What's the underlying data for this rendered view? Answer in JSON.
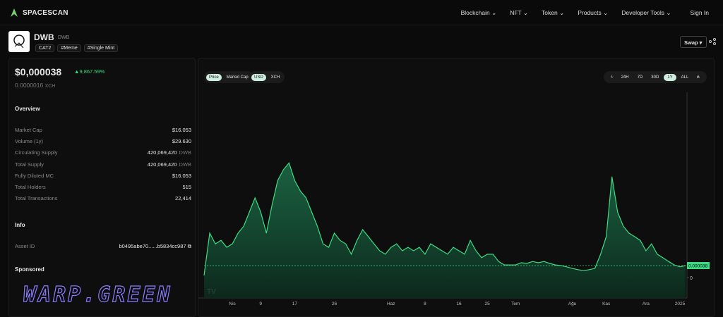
{
  "nav": {
    "brand": "SPACESCAN",
    "items": [
      "Blockchain",
      "NFT",
      "Token",
      "Products",
      "Developer Tools"
    ],
    "sign_in": "Sign In"
  },
  "token": {
    "name": "DWB",
    "symbol": "DWB",
    "tags": [
      "CAT2",
      "#Meme",
      "#Single Mint"
    ],
    "swap": "Swap"
  },
  "summary": {
    "price": "$0,000038",
    "change": "9,867.59%",
    "price_xch": "0.0000016",
    "xch_unit": "XCH"
  },
  "overview": {
    "title": "Overview",
    "rows": [
      {
        "label": "Market Cap",
        "value": "$16.053"
      },
      {
        "label": "Volume (1y)",
        "value": "$29.630"
      },
      {
        "label": "Circulating Supply",
        "value": "420,069,420",
        "unit": "DWB"
      },
      {
        "label": "Total Supply",
        "value": "420,069,420",
        "unit": "DWB"
      },
      {
        "label": "Fully Diluted MC",
        "value": "$16.053"
      },
      {
        "label": "Total Holders",
        "value": "515"
      },
      {
        "label": "Total Transactions",
        "value": "22,414"
      }
    ]
  },
  "info": {
    "title": "Info",
    "asset_id_label": "Asset ID",
    "asset_id": "b0495abe70......b5834cc987"
  },
  "sponsored": {
    "title": "Sponsored",
    "banner": "WARP.GREEN"
  },
  "chart_data": {
    "type": "area",
    "metric_toggle": [
      "Price",
      "Market Cap"
    ],
    "currency_toggle": [
      "USD",
      "XCH"
    ],
    "ranges": [
      "24H",
      "7D",
      "30D",
      "1Y",
      "ALL"
    ],
    "color": "#3ddc84",
    "categories": [
      null,
      null,
      null,
      null,
      null,
      "Nis",
      null,
      null,
      null,
      null,
      "9",
      null,
      null,
      null,
      null,
      null,
      "17",
      null,
      null,
      null,
      null,
      null,
      null,
      "26",
      null,
      null,
      null,
      null,
      null,
      null,
      null,
      null,
      null,
      "Haz",
      null,
      null,
      null,
      null,
      null,
      "8",
      null,
      null,
      null,
      null,
      null,
      "16",
      null,
      null,
      null,
      null,
      "25",
      null,
      null,
      null,
      null,
      "Tem",
      null,
      null,
      null,
      null,
      null,
      null,
      null,
      null,
      null,
      "Ağu",
      null,
      null,
      null,
      null,
      null,
      "Kas",
      null,
      null,
      null,
      null,
      null,
      null,
      "Ara",
      null,
      null,
      null,
      null,
      null,
      "2025",
      null
    ],
    "values": [
      6.7e-06,
      0.000141,
      0.000107,
      0.000118,
      9.6e-05,
      0.000107,
      0.000141,
      0.000163,
      0.000208,
      0.000253,
      0.000208,
      0.000141,
      0.00023,
      0.000308,
      0.000342,
      0.000364,
      0.000308,
      0.000275,
      0.000253,
      0.000208,
      0.000163,
      0.000107,
      9.6e-05,
      0.000141,
      0.000118,
      0.000107,
      7.4e-05,
      0.000118,
      0.000152,
      0.00013,
      0.000107,
      8.5e-05,
      7.4e-05,
      9.6e-05,
      0.000107,
      8.5e-05,
      9.6e-05,
      8.5e-05,
      9.6e-05,
      7.4e-05,
      0.000107,
      9.6e-05,
      8.5e-05,
      7.4e-05,
      9.6e-05,
      8.5e-05,
      7.4e-05,
      0.000118,
      8.5e-05,
      6.3e-05,
      7.4e-05,
      7.4e-05,
      5.1e-05,
      4e-05,
      4e-05,
      4e-05,
      4.7e-05,
      4.5e-05,
      5.1e-05,
      4.7e-05,
      5.1e-05,
      4.5e-05,
      4e-05,
      3.8e-05,
      3.4e-05,
      2.9e-05,
      2.5e-05,
      2.2e-05,
      2.5e-05,
      2.9e-05,
      7.4e-05,
      0.00013,
      0.00032,
      0.000208,
      0.000163,
      0.000141,
      0.00013,
      0.000118,
      8.5e-05,
      0.000107,
      7.4e-05,
      6.3e-05,
      5.1e-05,
      4e-05,
      3.4e-05,
      3.8e-05
    ],
    "ylim": [
      0,
      0.000588
    ],
    "yticks": [
      0
    ],
    "last_price": 3.8e-05
  }
}
